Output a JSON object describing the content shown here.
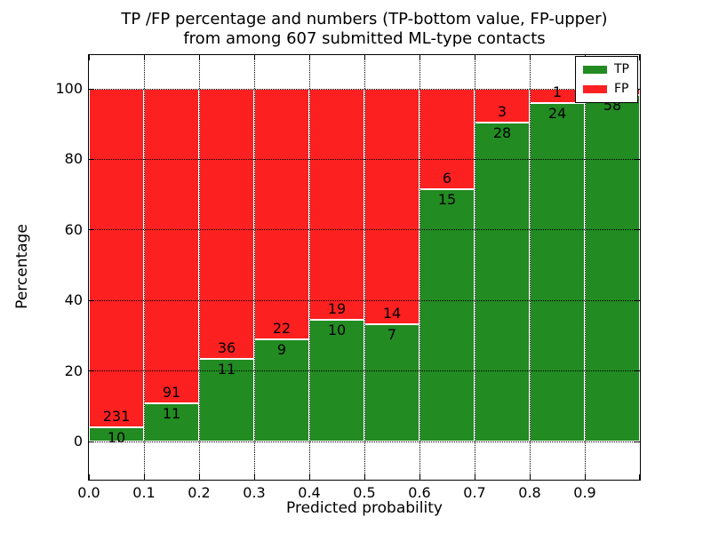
{
  "chart_data": {
    "type": "bar",
    "stacked": true,
    "percent_normalized": true,
    "title_lines": [
      "TP /FP percentage and numbers (TP-bottom value, FP-upper)",
      "from among 607 submitted ML-type contacts"
    ],
    "xlabel": "Predicted probability",
    "ylabel": "Percentage",
    "categories": [
      "0.0-0.1",
      "0.1-0.2",
      "0.2-0.3",
      "0.3-0.4",
      "0.4-0.5",
      "0.5-0.6",
      "0.6-0.7",
      "0.7-0.8",
      "0.8-0.9",
      "0.9-1.0"
    ],
    "series": [
      {
        "name": "TP",
        "color": "#228b22",
        "values": [
          10,
          11,
          11,
          9,
          10,
          7,
          15,
          28,
          24,
          58
        ]
      },
      {
        "name": "FP",
        "color": "#fc2020",
        "values": [
          231,
          91,
          36,
          22,
          19,
          14,
          6,
          3,
          1,
          1
        ]
      }
    ],
    "xticks": [
      "0.0",
      "0.1",
      "0.2",
      "0.3",
      "0.4",
      "0.5",
      "0.6",
      "0.7",
      "0.8",
      "0.9"
    ],
    "yticks": [
      0,
      20,
      40,
      60,
      80,
      100
    ],
    "xlim": [
      0.0,
      1.0
    ],
    "ylim": [
      -10.8,
      109.6
    ],
    "grid": {
      "style": "dotted",
      "color": "#000000",
      "axisbelow": false
    },
    "bar_edge_color": "#ffffff",
    "legend": {
      "position": "upper right",
      "entries": [
        {
          "label": "TP",
          "color": "#228b22"
        },
        {
          "label": "FP",
          "color": "#fc2020"
        }
      ]
    },
    "background": "#ffffff",
    "text_color": "#000000"
  }
}
